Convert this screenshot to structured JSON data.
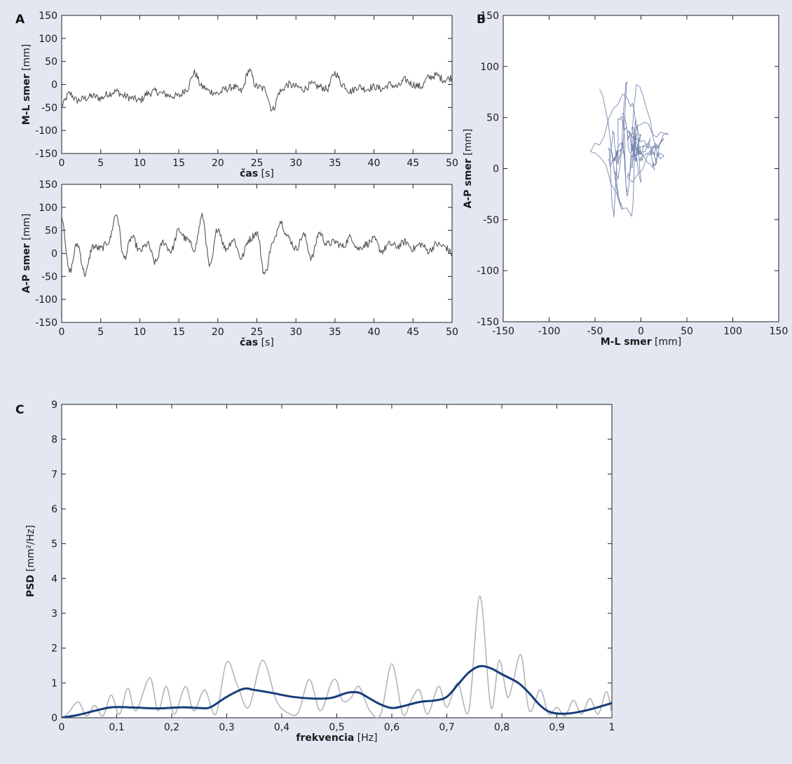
{
  "chart_data": [
    {
      "panel_label": "A",
      "type": "line",
      "xlabel_bold": "čas",
      "xlabel_unit": "[s]",
      "ylabel_bold": "M-L smer",
      "ylabel_unit": "[mm]",
      "xlim": [
        0,
        50
      ],
      "ylim": [
        -150,
        150
      ],
      "x_ticks": [
        0,
        5,
        10,
        15,
        20,
        25,
        30,
        35,
        40,
        45,
        50
      ],
      "y_ticks": [
        -150,
        -100,
        -50,
        0,
        50,
        100,
        150
      ],
      "series": [
        {
          "color": "#555555",
          "x": [
            0,
            1,
            2,
            3,
            4,
            5,
            6,
            7,
            8,
            9,
            10,
            11,
            12,
            13,
            14,
            15,
            16,
            17,
            18,
            19,
            20,
            21,
            22,
            23,
            24,
            25,
            26,
            27,
            28,
            29,
            30,
            31,
            32,
            33,
            34,
            35,
            36,
            37,
            38,
            39,
            40,
            41,
            42,
            43,
            44,
            45,
            46,
            47,
            48,
            49,
            50
          ],
          "y": [
            -45,
            -20,
            -35,
            -30,
            -25,
            -30,
            -20,
            -15,
            -25,
            -30,
            -35,
            -20,
            -15,
            -20,
            -25,
            -25,
            -10,
            25,
            -5,
            -15,
            -20,
            -10,
            -5,
            -15,
            30,
            -5,
            -10,
            -55,
            -15,
            0,
            -5,
            -10,
            0,
            -5,
            -10,
            25,
            0,
            -15,
            -5,
            -10,
            -5,
            -10,
            0,
            -5,
            10,
            0,
            -5,
            15,
            20,
            10,
            15
          ]
        }
      ]
    },
    {
      "panel_label": "",
      "type": "line",
      "xlabel_bold": "čas",
      "xlabel_unit": "[s]",
      "ylabel_bold": "A-P smer",
      "ylabel_unit": "[mm]",
      "xlim": [
        0,
        50
      ],
      "ylim": [
        -150,
        150
      ],
      "x_ticks": [
        0,
        5,
        10,
        15,
        20,
        25,
        30,
        35,
        40,
        45,
        50
      ],
      "y_ticks": [
        -150,
        -100,
        -50,
        0,
        50,
        100,
        150
      ],
      "series": [
        {
          "color": "#555555",
          "x": [
            0,
            1,
            2,
            3,
            4,
            5,
            6,
            7,
            8,
            9,
            10,
            11,
            12,
            13,
            14,
            15,
            16,
            17,
            18,
            19,
            20,
            21,
            22,
            23,
            24,
            25,
            26,
            27,
            28,
            29,
            30,
            31,
            32,
            33,
            34,
            35,
            36,
            37,
            38,
            39,
            40,
            41,
            42,
            43,
            44,
            45,
            46,
            47,
            48,
            49,
            50
          ],
          "y": [
            80,
            -40,
            20,
            -45,
            15,
            10,
            25,
            85,
            -10,
            35,
            5,
            20,
            -20,
            25,
            5,
            50,
            30,
            10,
            80,
            -30,
            55,
            10,
            30,
            -10,
            30,
            45,
            -45,
            20,
            70,
            35,
            10,
            40,
            -10,
            45,
            20,
            25,
            15,
            35,
            10,
            20,
            30,
            5,
            20,
            15,
            25,
            10,
            20,
            5,
            20,
            15,
            0
          ]
        }
      ]
    },
    {
      "panel_label": "B",
      "type": "line",
      "xlabel_bold": "M-L smer",
      "xlabel_unit": "[mm]",
      "ylabel_bold": "A-P smer",
      "ylabel_unit": "[mm]",
      "xlim": [
        -150,
        150
      ],
      "ylim": [
        -150,
        150
      ],
      "x_ticks": [
        -150,
        -100,
        -50,
        0,
        50,
        100,
        150
      ],
      "y_ticks": [
        -150,
        -100,
        -50,
        0,
        50,
        100,
        150
      ],
      "series": [
        {
          "color": "#4a5f96",
          "x": [
            -45,
            -20,
            -35,
            -30,
            -25,
            -30,
            -20,
            -15,
            -25,
            -30,
            -35,
            -20,
            -15,
            -20,
            -25,
            -25,
            -10,
            25,
            -5,
            -15,
            -20,
            -10,
            -5,
            -15,
            30,
            -5,
            -10,
            -55,
            -15,
            0,
            -5,
            -10,
            0,
            -5,
            -10,
            25,
            0,
            -15,
            -5,
            -10,
            -5,
            -10,
            0,
            -5,
            10,
            0,
            -5,
            15,
            20,
            10,
            15
          ],
          "y": [
            80,
            -40,
            20,
            -45,
            15,
            10,
            25,
            85,
            -10,
            35,
            5,
            20,
            -20,
            25,
            5,
            50,
            30,
            10,
            80,
            -30,
            55,
            10,
            30,
            -10,
            30,
            45,
            -45,
            20,
            70,
            35,
            10,
            40,
            -10,
            45,
            20,
            25,
            15,
            35,
            10,
            20,
            30,
            5,
            20,
            15,
            25,
            10,
            20,
            5,
            20,
            15,
            0
          ]
        }
      ]
    },
    {
      "panel_label": "C",
      "type": "line",
      "xlabel_bold": "frekvencia",
      "xlabel_unit": "[Hz]",
      "ylabel_bold": "PSD",
      "ylabel_unit": "[mm²/Hz]",
      "xlim": [
        0,
        1
      ],
      "ylim": [
        0,
        9
      ],
      "x_ticks": [
        "0",
        "0,1",
        "0,2",
        "0,3",
        "0,4",
        "0,5",
        "0,6",
        "0,7",
        "0,8",
        "0,9",
        "1"
      ],
      "y_ticks": [
        0,
        1,
        2,
        3,
        4,
        5,
        6,
        7,
        8,
        9
      ],
      "series": [
        {
          "color": "#b3b5bb",
          "x": [
            0,
            0.01,
            0.03,
            0.045,
            0.06,
            0.075,
            0.09,
            0.105,
            0.12,
            0.135,
            0.16,
            0.175,
            0.19,
            0.205,
            0.225,
            0.24,
            0.26,
            0.28,
            0.3,
            0.32,
            0.34,
            0.365,
            0.39,
            0.41,
            0.43,
            0.45,
            0.47,
            0.49,
            0.5,
            0.51,
            0.525,
            0.54,
            0.56,
            0.58,
            0.6,
            0.62,
            0.635,
            0.65,
            0.665,
            0.685,
            0.7,
            0.72,
            0.74,
            0.76,
            0.78,
            0.795,
            0.81,
            0.82,
            0.835,
            0.85,
            0.87,
            0.885,
            0.9,
            0.915,
            0.93,
            0.945,
            0.96,
            0.975,
            0.99,
            1
          ],
          "y": [
            0,
            0.1,
            0.45,
            0.05,
            0.35,
            0.05,
            0.65,
            0.1,
            0.85,
            0.2,
            1.15,
            0.2,
            0.9,
            0.1,
            0.9,
            0.2,
            0.8,
            0.1,
            1.6,
            0.9,
            0.3,
            1.65,
            0.5,
            0.15,
            0.15,
            1.1,
            0.2,
            1.0,
            1.05,
            0.5,
            0.55,
            0.9,
            0.2,
            0.1,
            1.55,
            0.1,
            0.5,
            0.8,
            0.1,
            0.9,
            0.3,
            1.0,
            0.2,
            3.5,
            0.3,
            1.65,
            0.6,
            1.0,
            1.8,
            0.2,
            0.8,
            0.1,
            0.3,
            0.05,
            0.5,
            0.1,
            0.55,
            0.1,
            0.75,
            0.1
          ]
        },
        {
          "color": "#163d7a",
          "x": [
            0,
            0.03,
            0.06,
            0.09,
            0.12,
            0.15,
            0.18,
            0.22,
            0.25,
            0.27,
            0.3,
            0.33,
            0.35,
            0.38,
            0.42,
            0.46,
            0.49,
            0.52,
            0.54,
            0.56,
            0.58,
            0.6,
            0.62,
            0.65,
            0.68,
            0.7,
            0.72,
            0.74,
            0.76,
            0.78,
            0.8,
            0.83,
            0.85,
            0.87,
            0.89,
            0.92,
            0.95,
            0.97,
            1
          ],
          "y": [
            0,
            0.08,
            0.2,
            0.3,
            0.3,
            0.28,
            0.27,
            0.3,
            0.28,
            0.3,
            0.6,
            0.83,
            0.8,
            0.72,
            0.6,
            0.55,
            0.57,
            0.72,
            0.72,
            0.55,
            0.38,
            0.28,
            0.33,
            0.45,
            0.5,
            0.6,
            0.95,
            1.3,
            1.48,
            1.42,
            1.25,
            1.0,
            0.7,
            0.35,
            0.15,
            0.12,
            0.2,
            0.28,
            0.42
          ]
        }
      ]
    }
  ]
}
